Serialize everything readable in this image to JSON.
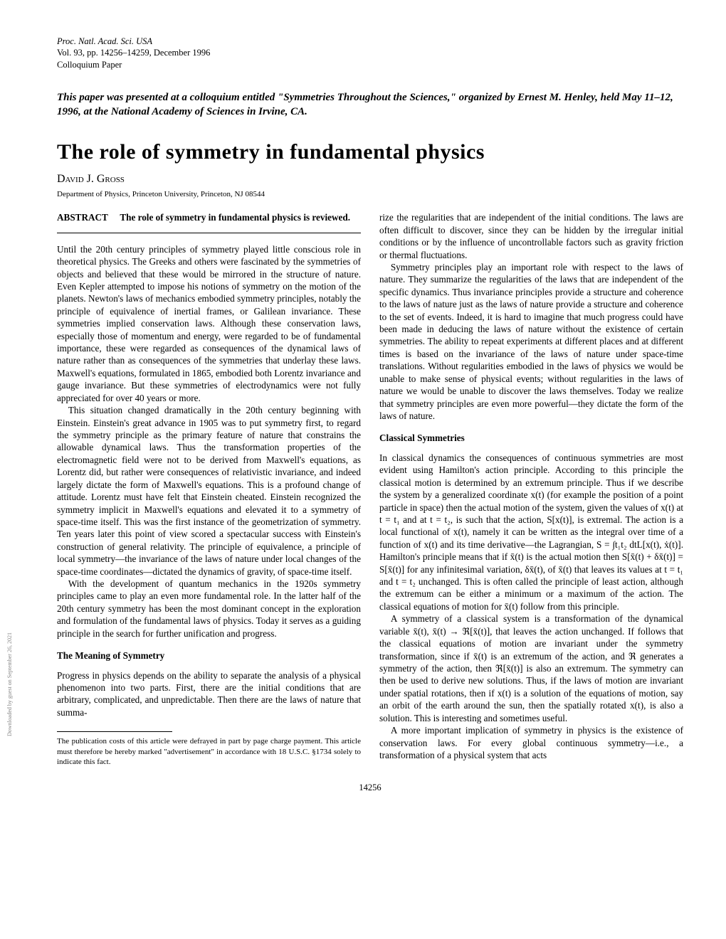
{
  "journal": {
    "name": "Proc. Natl. Acad. Sci. USA",
    "volpages": "Vol. 93, pp. 14256–14259, December 1996",
    "section": "Colloquium Paper"
  },
  "presented": "This paper was presented at a colloquium entitled \"Symmetries Throughout the Sciences,\" organized by Ernest M. Henley, held May 11–12, 1996, at the National Academy of Sciences in Irvine, CA.",
  "title": "The role of symmetry in fundamental physics",
  "author": "David J. Gross",
  "affiliation": "Department of Physics, Princeton University, Princeton, NJ 08544",
  "abstract_label": "ABSTRACT",
  "abstract_text": "The role of symmetry in fundamental physics is reviewed.",
  "left_paras": {
    "p1": "Until the 20th century principles of symmetry played little conscious role in theoretical physics. The Greeks and others were fascinated by the symmetries of objects and believed that these would be mirrored in the structure of nature. Even Kepler attempted to impose his notions of symmetry on the motion of the planets. Newton's laws of mechanics embodied symmetry principles, notably the principle of equivalence of inertial frames, or Galilean invariance. These symmetries implied conservation laws. Although these conservation laws, especially those of momentum and energy, were regarded to be of fundamental importance, these were regarded as consequences of the dynamical laws of nature rather than as consequences of the symmetries that underlay these laws. Maxwell's equations, formulated in 1865, embodied both Lorentz invariance and gauge invariance. But these symmetries of electrodynamics were not fully appreciated for over 40 years or more.",
    "p2": "This situation changed dramatically in the 20th century beginning with Einstein. Einstein's great advance in 1905 was to put symmetry first, to regard the symmetry principle as the primary feature of nature that constrains the allowable dynamical laws. Thus the transformation properties of the electromagnetic field were not to be derived from Maxwell's equations, as Lorentz did, but rather were consequences of relativistic invariance, and indeed largely dictate the form of Maxwell's equations. This is a profound change of attitude. Lorentz must have felt that Einstein cheated. Einstein recognized the symmetry implicit in Maxwell's equations and elevated it to a symmetry of space-time itself. This was the first instance of the geometrization of symmetry. Ten years later this point of view scored a spectacular success with Einstein's construction of general relativity. The principle of equivalence, a principle of local symmetry—the invariance of the laws of nature under local changes of the space-time coordinates—dictated the dynamics of gravity, of space-time itself.",
    "p3": "With the development of quantum mechanics in the 1920s symmetry principles came to play an even more fundamental role. In the latter half of the 20th century symmetry has been the most dominant concept in the exploration and formulation of the fundamental laws of physics. Today it serves as a guiding principle in the search for further unification and progress."
  },
  "section_meaning": "The Meaning of Symmetry",
  "left_paras2": {
    "p4": "Progress in physics depends on the ability to separate the analysis of a physical phenomenon into two parts. First, there are the initial conditions that are arbitrary, complicated, and unpredictable. Then there are the laws of nature that summa-"
  },
  "footnote": "The publication costs of this article were defrayed in part by page charge payment. This article must therefore be hereby marked \"advertisement\" in accordance with 18 U.S.C. §1734 solely to indicate this fact.",
  "right_paras": {
    "p1": "rize the regularities that are independent of the initial conditions. The laws are often difficult to discover, since they can be hidden by the irregular initial conditions or by the influence of uncontrollable factors such as gravity friction or thermal fluctuations.",
    "p2": "Symmetry principles play an important role with respect to the laws of nature. They summarize the regularities of the laws that are independent of the specific dynamics. Thus invariance principles provide a structure and coherence to the laws of nature just as the laws of nature provide a structure and coherence to the set of events. Indeed, it is hard to imagine that much progress could have been made in deducing the laws of nature without the existence of certain symmetries. The ability to repeat experiments at different places and at different times is based on the invariance of the laws of nature under space-time translations. Without regularities embodied in the laws of physics we would be unable to make sense of physical events; without regularities in the laws of nature we would be unable to discover the laws themselves. Today we realize that symmetry principles are even more powerful—they dictate the form of the laws of nature."
  },
  "section_classical": "Classical Symmetries",
  "right_paras2": {
    "p3": "In classical dynamics the consequences of continuous symmetries are most evident using Hamilton's action principle. According to this principle the classical motion is determined by an extremum principle. Thus if we describe the system by a generalized coordinate x(t) (for example the position of a point particle in space) then the actual motion of the system, given the values of x(t) at t = t₁ and at t = t₂, is such that the action, S[x(t)], is extremal. The action is a local functional of x(t), namely it can be written as the integral over time of a function of x(t) and its time derivative—the Lagrangian, S = ∫t₁t₂ dtL[x(t), ẋ(t)]. Hamilton's principle means that if x̄(t) is the actual motion then S[x̄(t) + δx̄(t)] = S[x̄(t)] for any infinitesimal variation, δx̄(t), of x̄(t) that leaves its values at t = t₁ and t = t₂ unchanged. This is often called the principle of least action, although the extremum can be either a minimum or a maximum of the action. The classical equations of motion for x̄(t) follow from this principle.",
    "p4": "A symmetry of a classical system is a transformation of the dynamical variable x̄(t), x̄(t) → ℜ[x̄(t)], that leaves the action unchanged. If follows that the classical equations of motion are invariant under the symmetry transformation, since if x̄(t) is an extremum of the action, and ℜ generates a symmetry of the action, then ℜ[x̄(t)] is also an extremum. The symmetry can then be used to derive new solutions. Thus, if the laws of motion are invariant under spatial rotations, then if x(t) is a solution of the equations of motion, say an orbit of the earth around the sun, then the spatially rotated x(t), is also a solution. This is interesting and sometimes useful.",
    "p5": "A more important implication of symmetry in physics is the existence of conservation laws. For every global continuous symmetry—i.e., a transformation of a physical system that acts"
  },
  "page_number": "14256",
  "side_text": "Downloaded by guest on September 26, 2021"
}
